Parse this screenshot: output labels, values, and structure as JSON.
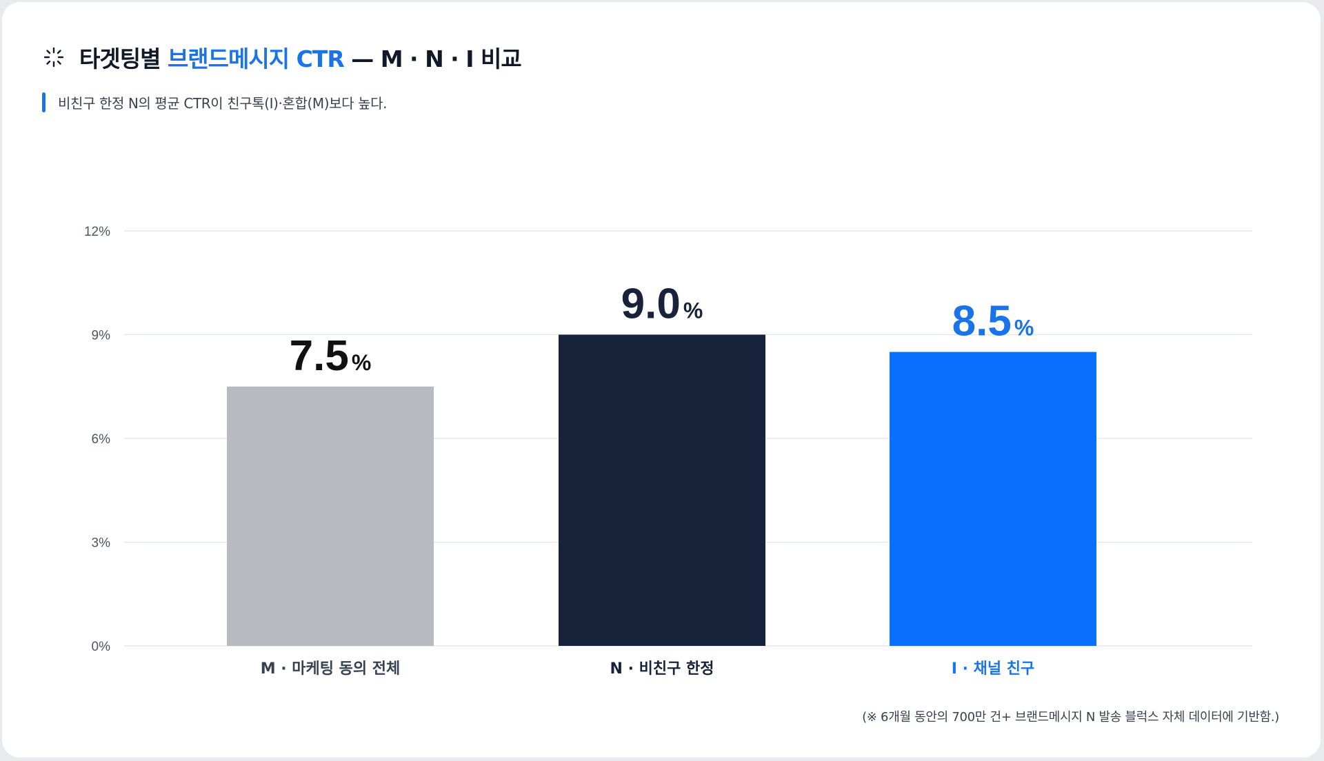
{
  "header": {
    "title_prefix": "타겟팅별 ",
    "title_accent": "브랜드메시지 CTR",
    "title_suffix": " — M · N · I 비교",
    "subtitle": "비친구 한정 N의 평균 CTR이 친구톡(I)·혼합(M)보다 높다.",
    "icon": "sparkle-icon"
  },
  "footnote": "(※ 6개월 동안의 700만 건+ 브랜드메시지 N 발송 블럭스 자체 데이터에 기반함.)",
  "colors": {
    "accent": "#1a73e8",
    "grid": "#e5e7eb",
    "axis_text": "#4b5563"
  },
  "chart_data": {
    "type": "bar",
    "categories": [
      "M · 마케팅 동의 전체",
      "N · 비친구 한정",
      "I · 채널 친구"
    ],
    "values": [
      7.5,
      9.0,
      8.5
    ],
    "value_labels": [
      "7.5",
      "9.0",
      "8.5"
    ],
    "value_unit": "%",
    "bar_colors": [
      "#b8b9c1",
      "#17233a",
      "#0a6ffc"
    ],
    "label_colors": [
      "#111111",
      "#17233a",
      "#1a73e8"
    ],
    "category_colors": [
      "#374151",
      "#17233a",
      "#1a73e8"
    ],
    "yticks": [
      "0%",
      "3%",
      "6%",
      "9%",
      "12%"
    ],
    "ytick_values": [
      0,
      3,
      6,
      9,
      12
    ],
    "ylim": [
      0,
      12
    ],
    "grid": true,
    "xlabel": "",
    "ylabel": ""
  }
}
